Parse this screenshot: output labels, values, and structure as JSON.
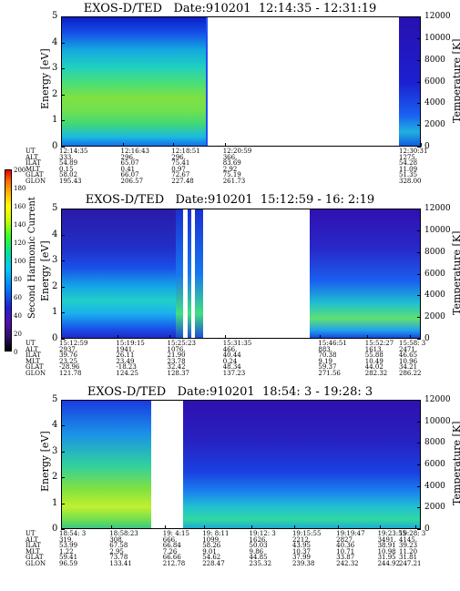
{
  "colorbar": {
    "label": "Second Harmonic Current",
    "ticks": [
      "200",
      "180",
      "160",
      "140",
      "120",
      "100",
      "80",
      "60",
      "40",
      "20",
      "0"
    ]
  },
  "eph_labels": [
    "UT",
    "ALT",
    "ILAT",
    "MLT",
    "GLAT",
    "GLON"
  ],
  "chart_data": [
    {
      "type": "heatmap",
      "title": "EXOS-D/TED   Date:910201  12:14:35 - 12:31:19",
      "ylabel": "Energy [eV]",
      "y2label": "Temperature [K]",
      "ylim": [
        0,
        5
      ],
      "y2lim": [
        0,
        12000
      ],
      "yticks": [
        "5",
        "4",
        "3",
        "2",
        "1",
        "0"
      ],
      "y2ticks": [
        "12000",
        "10000",
        "8000",
        "6000",
        "4000",
        "2000",
        "0"
      ],
      "columns": [
        {
          "frac": 0.0,
          "UT": "12:14:35",
          "ALT": "333.",
          "ILAT": "54.89",
          "MLT": "0.15",
          "GLAT": "58.02",
          "GLON": "195.43"
        },
        {
          "frac": 0.171,
          "UT": "12:16:43",
          "ALT": "296.",
          "ILAT": "65.07",
          "MLT": "0.41",
          "GLAT": "66.07",
          "GLON": "206.57"
        },
        {
          "frac": 0.312,
          "UT": "12:18:51",
          "ALT": "296.",
          "ILAT": "75.41",
          "MLT": "0.97",
          "GLAT": "72.67",
          "GLON": "227.48"
        },
        {
          "frac": 0.455,
          "UT": "12:20:59",
          "ALT": "366.",
          "ILAT": "83.69",
          "MLT": "2.92",
          "GLAT": "75.19",
          "GLON": "261.73"
        },
        {
          "frac": 1.0,
          "UT": "12:30:31",
          "ALT": "1275.",
          "ILAT": "54.28",
          "MLT": "11.09",
          "GLAT": "51.35",
          "GLON": "328.00"
        }
      ]
    },
    {
      "type": "heatmap",
      "title": "EXOS-D/TED   Date:910201  15:12:59 - 16: 2:19",
      "ylabel": "Energy [eV]",
      "y2label": "Temperature [K]",
      "ylim": [
        0,
        5
      ],
      "y2lim": [
        0,
        12000
      ],
      "yticks": [
        "5",
        "4",
        "3",
        "2",
        "1",
        "0"
      ],
      "y2ticks": [
        "12000",
        "10000",
        "8000",
        "6000",
        "4000",
        "2000",
        "0"
      ],
      "columns": [
        {
          "frac": 0.0,
          "UT": "15:12:59",
          "ALT": "2937.",
          "ILAT": "39.76",
          "MLT": "23.25",
          "GLAT": "-28.96",
          "GLON": "121.78"
        },
        {
          "frac": 0.158,
          "UT": "15:19:15",
          "ALT": "1941.",
          "ILAT": "26.11",
          "MLT": "23.49",
          "GLAT": "-18.23",
          "GLON": "124.25"
        },
        {
          "frac": 0.3,
          "UT": "15:25:23",
          "ALT": "1076.",
          "ILAT": "21.90",
          "MLT": "23.78",
          "GLAT": "32.42",
          "GLON": "128.37"
        },
        {
          "frac": 0.455,
          "UT": "15:31:35",
          "ALT": "466.",
          "ILAT": "40.44",
          "MLT": "0.24",
          "GLAT": "48.34",
          "GLON": "137.23"
        },
        {
          "frac": 0.72,
          "UT": "15:46:51",
          "ALT": "883.",
          "ILAT": "70.38",
          "MLT": "9.19",
          "GLAT": "59.37",
          "GLON": "271.56"
        },
        {
          "frac": 0.85,
          "UT": "15:52:27",
          "ALT": "1613.",
          "ILAT": "55.88",
          "MLT": "10.49",
          "GLAT": "44.02",
          "GLON": "282.32"
        },
        {
          "frac": 0.97,
          "UT": "15:58: 3",
          "ALT": "2471.",
          "ILAT": "46.65",
          "MLT": "10.96",
          "GLAT": "34.21",
          "GLON": "286.22"
        }
      ]
    },
    {
      "type": "heatmap",
      "title": "EXOS-D/TED   Date:910201  18:54: 3 - 19:28: 3",
      "ylabel": "Energy [eV]",
      "y2label": "Temperature [K]",
      "ylim": [
        0,
        5
      ],
      "y2lim": [
        0,
        12000
      ],
      "yticks": [
        "5",
        "4",
        "3",
        "2",
        "1",
        "0"
      ],
      "y2ticks": [
        "12000",
        "10000",
        "8000",
        "6000",
        "4000",
        "2000",
        "0"
      ],
      "columns": [
        {
          "frac": 0.0,
          "UT": "18:54: 3",
          "ALT": "319.",
          "ILAT": "53.99",
          "MLT": "1.22",
          "GLAT": "59.41",
          "GLON": "96.59"
        },
        {
          "frac": 0.14,
          "UT": "18:58:23",
          "ALT": "308.",
          "ILAT": "67.58",
          "MLT": "2.95",
          "GLAT": "73.78",
          "GLON": "133.41"
        },
        {
          "frac": 0.288,
          "UT": "19: 4:15",
          "ALT": "666.",
          "ILAT": "66.84",
          "MLT": "7.26",
          "GLAT": "66.66",
          "GLON": "212.78"
        },
        {
          "frac": 0.398,
          "UT": "19: 8:11",
          "ALT": "1099.",
          "ILAT": "58.26",
          "MLT": "9.01",
          "GLAT": "54.62",
          "GLON": "228.47"
        },
        {
          "frac": 0.528,
          "UT": "19:12: 3",
          "ALT": "1626.",
          "ILAT": "50.03",
          "MLT": "9.86",
          "GLAT": "44.85",
          "GLON": "235.32"
        },
        {
          "frac": 0.648,
          "UT": "19:15:55",
          "ALT": "2212.",
          "ILAT": "43.95",
          "MLT": "10.37",
          "GLAT": "37.99",
          "GLON": "239.38"
        },
        {
          "frac": 0.77,
          "UT": "19:19:47",
          "ALT": "2827.",
          "ILAT": "40.36",
          "MLT": "10.71",
          "GLAT": "33.87",
          "GLON": "242.32"
        },
        {
          "frac": 0.885,
          "UT": "19:23:55",
          "ALT": "3491.",
          "ILAT": "38.91",
          "MLT": "10.98",
          "GLAT": "31.95",
          "GLON": "244.92"
        },
        {
          "frac": 0.985,
          "UT": "19:28: 3",
          "ALT": "4145.",
          "ILAT": "39.23",
          "MLT": "11.20",
          "GLAT": "31.81",
          "GLON": "247.21"
        }
      ]
    }
  ]
}
